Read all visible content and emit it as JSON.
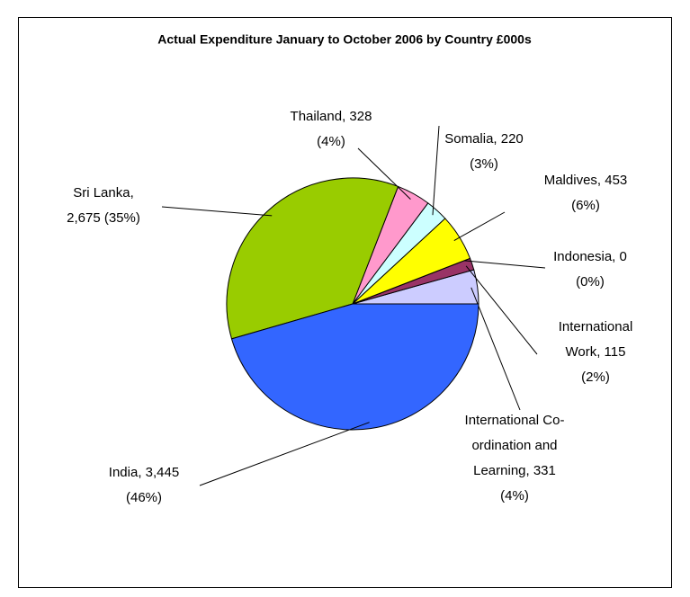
{
  "chart_data": {
    "type": "pie",
    "title": "Actual Expenditure January to October 2006 by Country £000s",
    "values": [
      331,
      115,
      0,
      453,
      220,
      328,
      2675,
      3445
    ],
    "labels": [
      [
        "International Co-",
        "ordination and",
        "Learning, 331",
        "(4%)"
      ],
      [
        "International",
        "Work,  115",
        "(2%)"
      ],
      [
        "Indonesia, 0",
        "(0%)"
      ],
      [
        "Maldives, 453",
        "(6%)"
      ],
      [
        "Somalia, 220",
        "(3%)"
      ],
      [
        "Thailand,  328",
        "(4%)"
      ],
      [
        "Sri Lanka,",
        "2,675 (35%)"
      ],
      [
        "India,  3,445",
        "(46%)"
      ]
    ],
    "colors": [
      "#ccccff",
      "#993366",
      "#800080",
      "#ffff00",
      "#ccffff",
      "#ff99cc",
      "#99cc00",
      "#3366ff"
    ]
  }
}
